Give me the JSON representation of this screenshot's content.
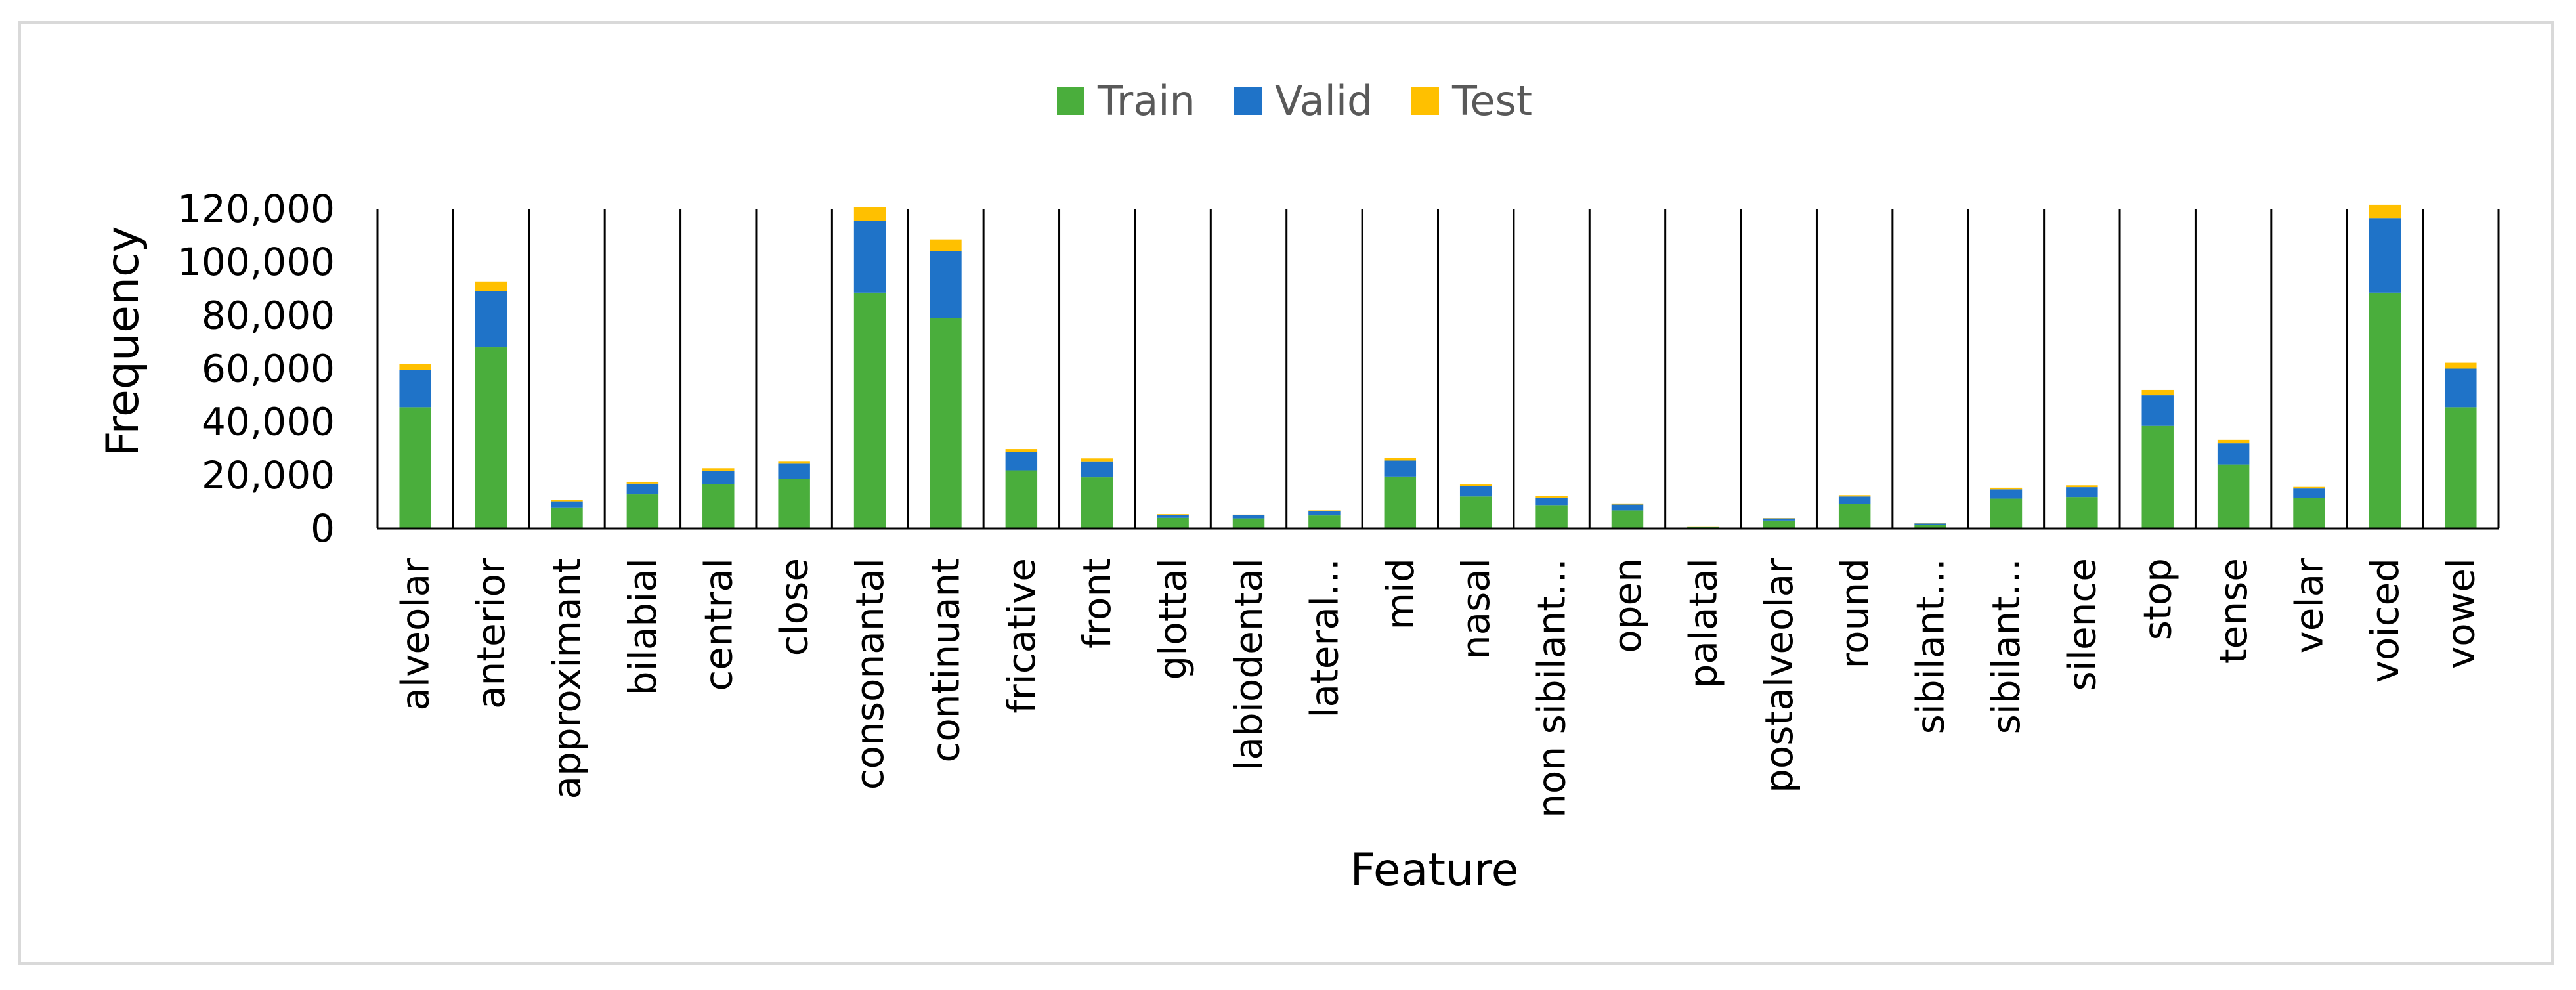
{
  "chart_data": {
    "type": "bar",
    "stacked": true,
    "title": "",
    "xlabel": "Feature",
    "ylabel": "Frequency",
    "ylim": [
      0,
      120000
    ],
    "yticks": [
      0,
      20000,
      40000,
      60000,
      80000,
      100000,
      120000
    ],
    "ytick_labels": [
      "0",
      "20,000",
      "40,000",
      "60,000",
      "80,000",
      "100,000",
      "120,000"
    ],
    "legend_position": "top-center",
    "grid": false,
    "category_separators": true,
    "categories": [
      "alveolar",
      "anterior",
      "approximant",
      "bilabial",
      "central",
      "close",
      "consonantal",
      "continuant",
      "fricative",
      "front",
      "glottal",
      "labiodental",
      "lateral…",
      "mid",
      "nasal",
      "non sibilant…",
      "open",
      "palatal",
      "postalveolar",
      "round",
      "sibilant…",
      "sibilant…",
      "silence",
      "stop",
      "tense",
      "velar",
      "voiced",
      "vowel"
    ],
    "series": [
      {
        "name": "Train",
        "color": "#4aae3c",
        "values": [
          45500,
          68000,
          7700,
          12800,
          16700,
          18500,
          88500,
          79000,
          21800,
          19200,
          4000,
          3800,
          4900,
          19500,
          12000,
          8800,
          6800,
          500,
          3000,
          9300,
          1400,
          11200,
          11800,
          38500,
          24000,
          11500,
          88500,
          45500
        ]
      },
      {
        "name": "Valid",
        "color": "#1f73c8",
        "values": [
          14000,
          21000,
          2500,
          4000,
          5000,
          5800,
          27000,
          25000,
          6800,
          6000,
          1200,
          1200,
          1600,
          6000,
          3800,
          2800,
          2200,
          200,
          800,
          2700,
          500,
          3500,
          3700,
          11500,
          8000,
          3500,
          28000,
          14500
        ]
      },
      {
        "name": "Test",
        "color": "#ffc000",
        "values": [
          2200,
          3700,
          400,
          700,
          900,
          1000,
          5000,
          4500,
          1200,
          1100,
          200,
          200,
          300,
          1100,
          700,
          500,
          400,
          100,
          100,
          500,
          100,
          600,
          700,
          2000,
          1300,
          600,
          5000,
          2200
        ]
      }
    ]
  }
}
